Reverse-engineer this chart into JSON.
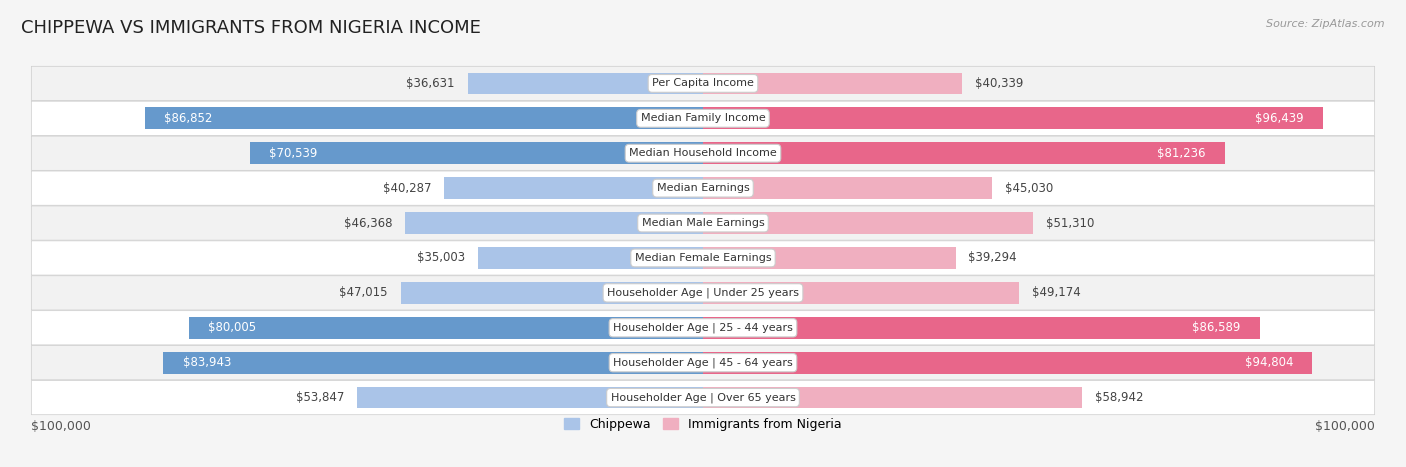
{
  "title": "CHIPPEWA VS IMMIGRANTS FROM NIGERIA INCOME",
  "source": "Source: ZipAtlas.com",
  "categories": [
    "Per Capita Income",
    "Median Family Income",
    "Median Household Income",
    "Median Earnings",
    "Median Male Earnings",
    "Median Female Earnings",
    "Householder Age | Under 25 years",
    "Householder Age | 25 - 44 years",
    "Householder Age | 45 - 64 years",
    "Householder Age | Over 65 years"
  ],
  "chippewa_values": [
    36631,
    86852,
    70539,
    40287,
    46368,
    35003,
    47015,
    80005,
    83943,
    53847
  ],
  "nigeria_values": [
    40339,
    96439,
    81236,
    45030,
    51310,
    39294,
    49174,
    86589,
    94804,
    58942
  ],
  "chippewa_labels": [
    "$36,631",
    "$86,852",
    "$70,539",
    "$40,287",
    "$46,368",
    "$35,003",
    "$47,015",
    "$80,005",
    "$83,943",
    "$53,847"
  ],
  "nigeria_labels": [
    "$40,339",
    "$96,439",
    "$81,236",
    "$45,030",
    "$51,310",
    "$39,294",
    "$49,174",
    "$86,589",
    "$94,804",
    "$58,942"
  ],
  "max_value": 100000,
  "chippewa_color_strong": "#6699cc",
  "chippewa_color_light": "#aac4e8",
  "nigeria_color_strong": "#e8668a",
  "nigeria_color_light": "#f0afc0",
  "bar_height": 0.62,
  "row_colors": [
    "#f2f2f2",
    "#ffffff"
  ],
  "legend_chippewa": "Chippewa",
  "legend_nigeria": "Immigrants from Nigeria",
  "x_label_left": "$100,000",
  "x_label_right": "$100,000",
  "inside_label_threshold": 65000,
  "title_fontsize": 13,
  "label_fontsize": 8.5,
  "category_fontsize": 8
}
